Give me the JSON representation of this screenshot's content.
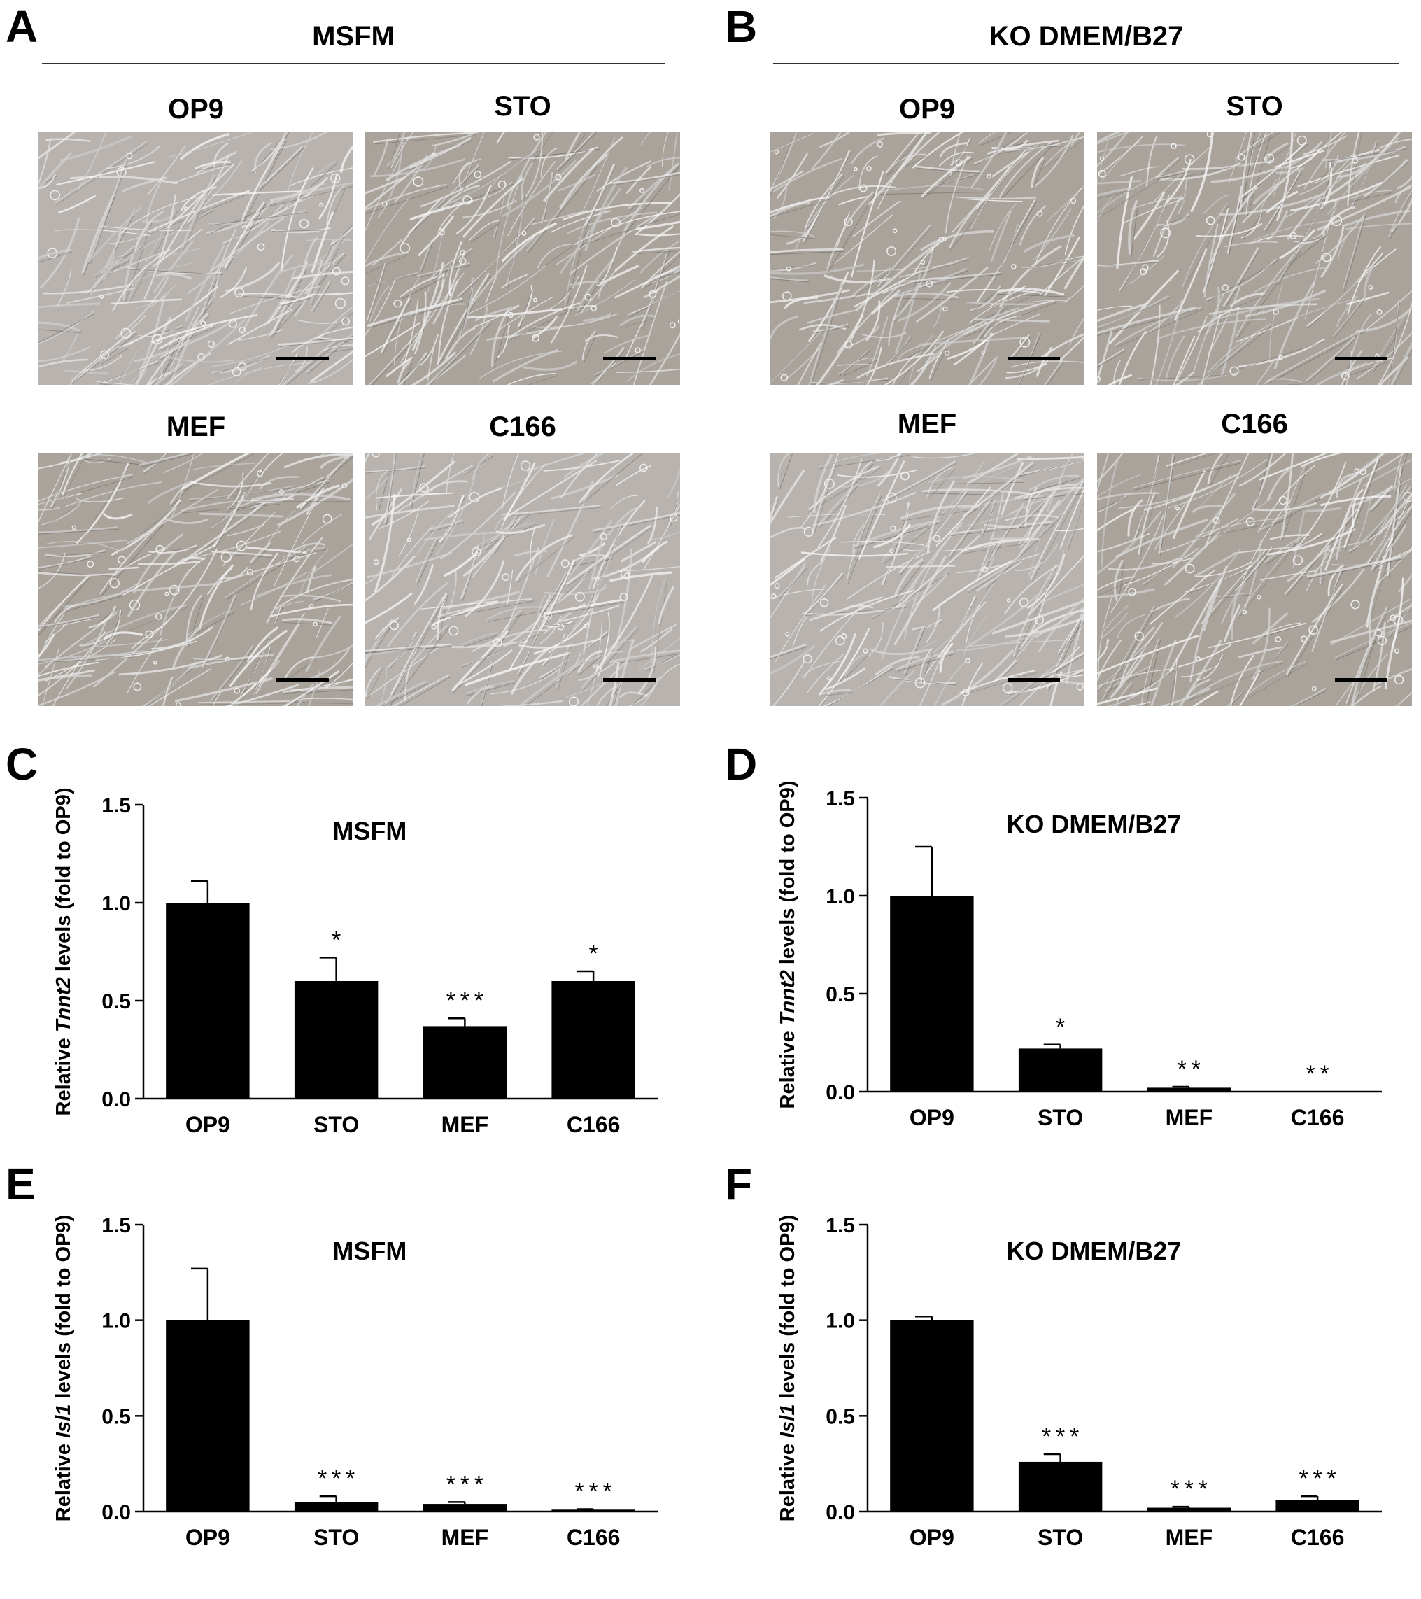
{
  "panels": {
    "A": {
      "letter": "A",
      "title": "MSFM",
      "images": [
        {
          "label": "OP9"
        },
        {
          "label": "STO"
        },
        {
          "label": "MEF"
        },
        {
          "label": "C166"
        }
      ]
    },
    "B": {
      "letter": "B",
      "title": "KO DMEM/B27",
      "images": [
        {
          "label": "OP9"
        },
        {
          "label": "STO"
        },
        {
          "label": "MEF"
        },
        {
          "label": "C166"
        }
      ]
    }
  },
  "colors": {
    "bar": "#000000",
    "micro_bg": "#b8b3ae",
    "micro_bg_alt": "#a9a39c",
    "scale_bar": "#000000"
  },
  "chart_data": [
    {
      "panel": "C",
      "type": "bar",
      "title": "MSFM",
      "ylabel_prefix": "Relative ",
      "ylabel_gene": "Tnnt2",
      "ylabel_suffix": " levels (fold to OP9)",
      "categories": [
        "OP9",
        "STO",
        "MEF",
        "C166"
      ],
      "values": [
        1.0,
        0.6,
        0.37,
        0.6
      ],
      "errors": [
        0.11,
        0.12,
        0.04,
        0.05
      ],
      "significance": [
        "",
        "*",
        "***",
        "*"
      ],
      "ylim": [
        0,
        1.5
      ],
      "yticks": [
        "0.0",
        "0.5",
        "1.0",
        "1.5"
      ],
      "grid": false
    },
    {
      "panel": "D",
      "type": "bar",
      "title": "KO DMEM/B27",
      "ylabel_prefix": "Relative ",
      "ylabel_gene": "Tnnt2",
      "ylabel_suffix": " levels (fold to OP9)",
      "categories": [
        "OP9",
        "STO",
        "MEF",
        "C166"
      ],
      "values": [
        1.0,
        0.22,
        0.02,
        0.0
      ],
      "errors": [
        0.25,
        0.02,
        0.005,
        0.0
      ],
      "significance": [
        "",
        "*",
        "**",
        "**"
      ],
      "ylim": [
        0,
        1.5
      ],
      "yticks": [
        "0.0",
        "0.5",
        "1.0",
        "1.5"
      ],
      "grid": false
    },
    {
      "panel": "E",
      "type": "bar",
      "title": "MSFM",
      "ylabel_prefix": "Relative ",
      "ylabel_gene": "Isl1",
      "ylabel_suffix": " levels (fold to OP9)",
      "categories": [
        "OP9",
        "STO",
        "MEF",
        "C166"
      ],
      "values": [
        1.0,
        0.05,
        0.04,
        0.01
      ],
      "errors": [
        0.27,
        0.03,
        0.01,
        0.003
      ],
      "significance": [
        "",
        "***",
        "***",
        "***"
      ],
      "ylim": [
        0,
        1.5
      ],
      "yticks": [
        "0.0",
        "0.5",
        "1.0",
        "1.5"
      ],
      "grid": false
    },
    {
      "panel": "F",
      "type": "bar",
      "title": "KO DMEM/B27",
      "ylabel_prefix": "Relative ",
      "ylabel_gene": "Isl1",
      "ylabel_suffix": " levels (fold to OP9)",
      "categories": [
        "OP9",
        "STO",
        "MEF",
        "C166"
      ],
      "values": [
        1.0,
        0.26,
        0.02,
        0.06
      ],
      "errors": [
        0.02,
        0.04,
        0.005,
        0.02
      ],
      "significance": [
        "",
        "***",
        "***",
        "***"
      ],
      "ylim": [
        0,
        1.5
      ],
      "yticks": [
        "0.0",
        "0.5",
        "1.0",
        "1.5"
      ],
      "grid": false
    }
  ]
}
